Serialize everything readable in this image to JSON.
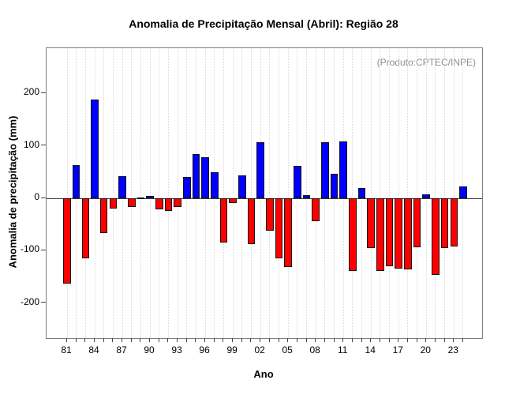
{
  "annotation": "(Produto:CPTEC/INPE)",
  "chart_data": {
    "type": "bar",
    "title": "Anomalia de Precipitação Mensal (Abril): Região 28",
    "xlabel": "Ano",
    "ylabel": "Anomalia de precipitação (mm)",
    "categories": [
      "81",
      "82",
      "83",
      "84",
      "85",
      "86",
      "87",
      "88",
      "89",
      "90",
      "91",
      "92",
      "93",
      "94",
      "95",
      "96",
      "97",
      "98",
      "99",
      "00",
      "01",
      "02",
      "03",
      "04",
      "05",
      "06",
      "07",
      "08",
      "09",
      "10",
      "11",
      "12",
      "13",
      "14",
      "15",
      "16",
      "17",
      "18",
      "19",
      "20",
      "21",
      "22",
      "23",
      "24"
    ],
    "values": [
      -163,
      63,
      -114,
      188,
      -66,
      -20,
      42,
      -16,
      2,
      4,
      -21,
      -24,
      -17,
      40,
      84,
      79,
      50,
      -84,
      -9,
      44,
      -87,
      107,
      -61,
      -115,
      -131,
      61,
      6,
      -43,
      107,
      46,
      109,
      -138,
      19,
      -95,
      -138,
      -129,
      -134,
      -136,
      -94,
      8,
      -146,
      -95,
      -92,
      22
    ],
    "x_tick_label_step": 3,
    "x_tick_labels_shown": [
      "81",
      "84",
      "87",
      "90",
      "93",
      "96",
      "99",
      "02",
      "05",
      "08",
      "11",
      "14",
      "17",
      "20",
      "23"
    ],
    "yticks": [
      200,
      100,
      0,
      -100,
      -200
    ],
    "ylim": [
      -267,
      286
    ],
    "grid": "dotted-vertical-per-year",
    "legend_position": "none",
    "positive_color": "#0000ff",
    "negative_color": "#ff0000",
    "bar_border_color": "#141414",
    "frame_color": "#808080",
    "annotation_color": "#8f8f8f"
  }
}
